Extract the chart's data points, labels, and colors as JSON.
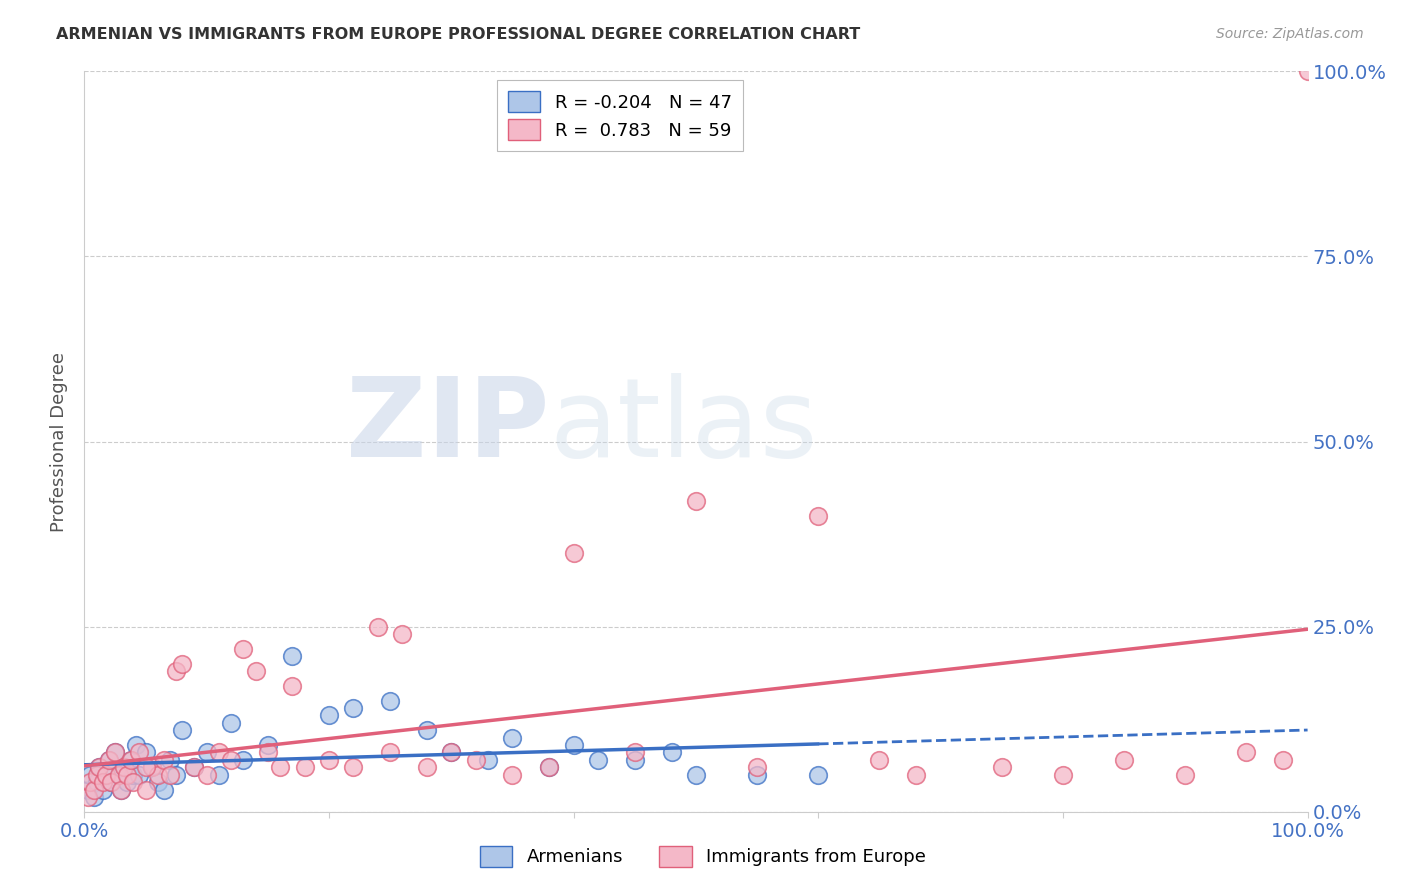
{
  "title": "ARMENIAN VS IMMIGRANTS FROM EUROPE PROFESSIONAL DEGREE CORRELATION CHART",
  "source": "Source: ZipAtlas.com",
  "ylabel": "Professional Degree",
  "ytick_values": [
    0,
    25,
    50,
    75,
    100
  ],
  "xlim": [
    0,
    100
  ],
  "ylim": [
    0,
    100
  ],
  "legend_armenians": "Armenians",
  "legend_immigrants": "Immigrants from Europe",
  "r_armenians": -0.204,
  "n_armenians": 47,
  "r_immigrants": 0.783,
  "n_immigrants": 59,
  "color_armenians": "#aec6e8",
  "color_immigrants": "#f4b8c8",
  "color_line_armenians": "#3a6fc4",
  "color_line_immigrants": "#e0607a",
  "armenians_x": [
    0.3,
    0.5,
    0.8,
    1.0,
    1.2,
    1.5,
    1.8,
    2.0,
    2.2,
    2.5,
    2.8,
    3.0,
    3.2,
    3.5,
    3.8,
    4.0,
    4.2,
    4.5,
    5.0,
    5.5,
    6.0,
    6.5,
    7.0,
    7.5,
    8.0,
    9.0,
    10.0,
    11.0,
    12.0,
    13.0,
    15.0,
    17.0,
    20.0,
    22.0,
    25.0,
    28.0,
    30.0,
    33.0,
    35.0,
    38.0,
    40.0,
    42.0,
    45.0,
    48.0,
    50.0,
    55.0,
    60.0
  ],
  "armenians_y": [
    3,
    5,
    2,
    4,
    6,
    3,
    5,
    7,
    4,
    8,
    5,
    3,
    6,
    4,
    7,
    5,
    9,
    5,
    8,
    6,
    4,
    3,
    7,
    5,
    11,
    6,
    8,
    5,
    12,
    7,
    9,
    21,
    13,
    14,
    15,
    11,
    8,
    7,
    10,
    6,
    9,
    7,
    7,
    8,
    5,
    5,
    5
  ],
  "immigrants_x": [
    0.3,
    0.5,
    0.8,
    1.0,
    1.2,
    1.5,
    1.8,
    2.0,
    2.2,
    2.5,
    2.8,
    3.0,
    3.2,
    3.5,
    3.8,
    4.0,
    4.5,
    5.0,
    5.5,
    6.0,
    6.5,
    7.0,
    7.5,
    8.0,
    9.0,
    10.0,
    11.0,
    12.0,
    13.0,
    14.0,
    15.0,
    16.0,
    17.0,
    18.0,
    20.0,
    22.0,
    24.0,
    25.0,
    26.0,
    28.0,
    30.0,
    32.0,
    35.0,
    38.0,
    40.0,
    45.0,
    50.0,
    55.0,
    60.0,
    65.0,
    68.0,
    75.0,
    80.0,
    85.0,
    90.0,
    95.0,
    98.0,
    100.0,
    5.0
  ],
  "immigrants_y": [
    2,
    4,
    3,
    5,
    6,
    4,
    5,
    7,
    4,
    8,
    5,
    3,
    6,
    5,
    7,
    4,
    8,
    3,
    6,
    5,
    7,
    5,
    19,
    20,
    6,
    5,
    8,
    7,
    22,
    19,
    8,
    6,
    17,
    6,
    7,
    6,
    25,
    8,
    24,
    6,
    8,
    7,
    5,
    6,
    35,
    8,
    42,
    6,
    40,
    7,
    5,
    6,
    5,
    7,
    5,
    8,
    7,
    100,
    6
  ],
  "background_color": "#ffffff",
  "grid_color": "#cccccc",
  "title_color": "#333333",
  "axis_label_color": "#4472c4"
}
